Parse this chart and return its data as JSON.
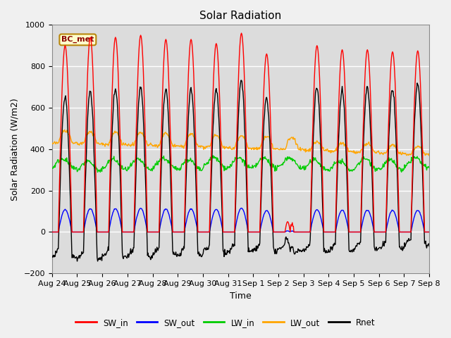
{
  "title": "Solar Radiation",
  "ylabel": "Solar Radiation (W/m2)",
  "xlabel": "Time",
  "ylim": [
    -200,
    1000
  ],
  "n_days": 15,
  "annotation": "BC_met",
  "x_tick_labels": [
    "Aug 24",
    "Aug 25",
    "Aug 26",
    "Aug 27",
    "Aug 28",
    "Aug 29",
    "Aug 30",
    "Aug 31",
    "Sep 1",
    "Sep 2",
    "Sep 3",
    "Sep 4",
    "Sep 5",
    "Sep 6",
    "Sep 7",
    "Sep 8"
  ],
  "legend_entries": [
    "SW_in",
    "SW_out",
    "LW_in",
    "LW_out",
    "Rnet"
  ],
  "legend_colors": [
    "#ff0000",
    "#0000ff",
    "#00cc00",
    "#ffa500",
    "#000000"
  ],
  "colors": {
    "SW_in": "#ff0000",
    "SW_out": "#0000ff",
    "LW_in": "#00cc00",
    "LW_out": "#ffa500",
    "Rnet": "#000000"
  },
  "sw_in_peaks": [
    900,
    940,
    940,
    950,
    930,
    930,
    910,
    960,
    860,
    0,
    900,
    880,
    880,
    870,
    875
  ],
  "plot_bg_color": "#dcdcdc",
  "fig_bg_color": "#f0f0f0",
  "grid_color": "#ffffff",
  "title_fontsize": 11,
  "axis_fontsize": 9,
  "tick_fontsize": 8,
  "linewidth": 1.0
}
